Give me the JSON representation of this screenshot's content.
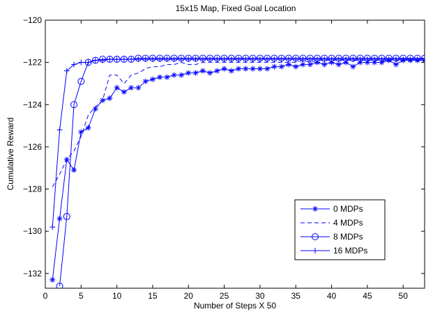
{
  "chart_data": {
    "type": "line",
    "title": "15x15 Map, Fixed Goal Location",
    "xlabel": "Number of Steps X 50",
    "ylabel": "Cumulative Reward",
    "xlim": [
      0,
      53
    ],
    "ylim": [
      -132.7,
      -120
    ],
    "xticks": [
      0,
      5,
      10,
      15,
      20,
      25,
      30,
      35,
      40,
      45,
      50
    ],
    "yticks": [
      -132,
      -130,
      -128,
      -126,
      -124,
      -122,
      -120
    ],
    "grid": false,
    "legend_position": "lower-right",
    "color": "#0000ff",
    "series": [
      {
        "name": "0 MDPs",
        "marker": "asterisk",
        "linestyle": "solid",
        "x": [
          1,
          2,
          3,
          4,
          5,
          6,
          7,
          8,
          9,
          10,
          11,
          12,
          13,
          14,
          15,
          16,
          17,
          18,
          19,
          20,
          21,
          22,
          23,
          24,
          25,
          26,
          27,
          28,
          29,
          30,
          31,
          32,
          33,
          34,
          35,
          36,
          37,
          38,
          39,
          40,
          41,
          42,
          43,
          44,
          45,
          46,
          47,
          48,
          49,
          50,
          51,
          52,
          53
        ],
        "y": [
          -132.3,
          -129.4,
          -126.6,
          -127.1,
          -125.3,
          -125.1,
          -124.2,
          -123.8,
          -123.7,
          -123.2,
          -123.4,
          -123.2,
          -123.2,
          -122.9,
          -122.8,
          -122.7,
          -122.7,
          -122.6,
          -122.6,
          -122.5,
          -122.5,
          -122.4,
          -122.5,
          -122.4,
          -122.3,
          -122.4,
          -122.3,
          -122.3,
          -122.3,
          -122.3,
          -122.3,
          -122.2,
          -122.2,
          -122.1,
          -122.2,
          -122.1,
          -122.1,
          -122.0,
          -122.1,
          -122.0,
          -122.1,
          -122.0,
          -122.2,
          -122.0,
          -122.0,
          -122.0,
          -122.0,
          -121.9,
          -122.1,
          -121.9,
          -121.9,
          -121.9,
          -121.9
        ]
      },
      {
        "name": "4 MDPs",
        "marker": "none",
        "linestyle": "dashed",
        "x": [
          1,
          2,
          3,
          4,
          5,
          6,
          7,
          8,
          9,
          10,
          11,
          12,
          13,
          14,
          15,
          16,
          17,
          18,
          19,
          20,
          21,
          22,
          23,
          24,
          25,
          26,
          27,
          28,
          29,
          30,
          31,
          32,
          33,
          34,
          35,
          36,
          37,
          38,
          39,
          40,
          41,
          42,
          43,
          44,
          45,
          46,
          47,
          48,
          49,
          50,
          51,
          52,
          53
        ],
        "y": [
          -127.9,
          -127.3,
          -126.6,
          -126.2,
          -125.5,
          -124.5,
          -124.1,
          -123.8,
          -122.6,
          -122.6,
          -123.0,
          -122.6,
          -122.5,
          -122.3,
          -122.2,
          -122.2,
          -122.1,
          -122.1,
          -122.0,
          -122.1,
          -122.1,
          -122.0,
          -122.0,
          -122.0,
          -122.0,
          -122.0,
          -122.0,
          -122.0,
          -122.0,
          -122.0,
          -122.0,
          -122.0,
          -122.0,
          -122.0,
          -122.0,
          -121.9,
          -122.0,
          -121.9,
          -121.9,
          -121.9,
          -121.9,
          -121.9,
          -121.9,
          -121.9,
          -121.9,
          -121.9,
          -121.9,
          -121.9,
          -121.9,
          -121.9,
          -121.9,
          -121.9,
          -121.9
        ]
      },
      {
        "name": "8 MDPs",
        "marker": "circle",
        "linestyle": "solid",
        "x": [
          2,
          3,
          4,
          5,
          6,
          7,
          8,
          9,
          10,
          11,
          12,
          13,
          14,
          15,
          16,
          17,
          18,
          19,
          20,
          21,
          22,
          23,
          24,
          25,
          26,
          27,
          28,
          29,
          30,
          31,
          32,
          33,
          34,
          35,
          36,
          37,
          38,
          39,
          40,
          41,
          42,
          43,
          44,
          45,
          46,
          47,
          48,
          49,
          50,
          51,
          52,
          53
        ],
        "y": [
          -132.6,
          -129.3,
          -124.0,
          -122.9,
          -122.0,
          -121.9,
          -121.85,
          -121.85,
          -121.85,
          -121.85,
          -121.85,
          -121.8,
          -121.8,
          -121.8,
          -121.8,
          -121.8,
          -121.8,
          -121.8,
          -121.8,
          -121.8,
          -121.8,
          -121.8,
          -121.8,
          -121.8,
          -121.8,
          -121.8,
          -121.8,
          -121.8,
          -121.8,
          -121.8,
          -121.8,
          -121.8,
          -121.8,
          -121.8,
          -121.8,
          -121.8,
          -121.8,
          -121.8,
          -121.8,
          -121.8,
          -121.8,
          -121.8,
          -121.8,
          -121.8,
          -121.8,
          -121.8,
          -121.8,
          -121.8,
          -121.8,
          -121.8,
          -121.8,
          -121.8
        ]
      },
      {
        "name": "16 MDPs",
        "marker": "plus",
        "linestyle": "solid",
        "x": [
          1,
          2,
          3,
          4,
          5,
          6,
          7,
          8,
          9,
          10,
          11,
          12,
          13,
          14,
          15,
          16,
          17,
          18,
          19,
          20,
          21,
          22,
          23,
          24,
          25,
          26,
          27,
          28,
          29,
          30,
          31,
          32,
          33,
          34,
          35,
          36,
          37,
          38,
          39,
          40,
          41,
          42,
          43,
          44,
          45,
          46,
          47,
          48,
          49,
          50,
          51,
          52,
          53
        ],
        "y": [
          -129.8,
          -125.2,
          -122.4,
          -122.1,
          -122.0,
          -122.0,
          -121.9,
          -121.9,
          -121.85,
          -121.85,
          -121.85,
          -121.85,
          -121.85,
          -121.85,
          -121.85,
          -121.85,
          -121.85,
          -121.85,
          -121.85,
          -121.85,
          -121.85,
          -121.85,
          -121.85,
          -121.85,
          -121.85,
          -121.85,
          -121.85,
          -121.85,
          -121.85,
          -121.85,
          -121.85,
          -121.85,
          -121.85,
          -121.85,
          -121.85,
          -121.85,
          -121.85,
          -121.85,
          -121.85,
          -121.85,
          -121.85,
          -121.85,
          -121.85,
          -121.85,
          -121.85,
          -121.85,
          -121.85,
          -121.85,
          -121.85,
          -121.85,
          -121.85,
          -121.85,
          -121.85
        ]
      }
    ]
  }
}
